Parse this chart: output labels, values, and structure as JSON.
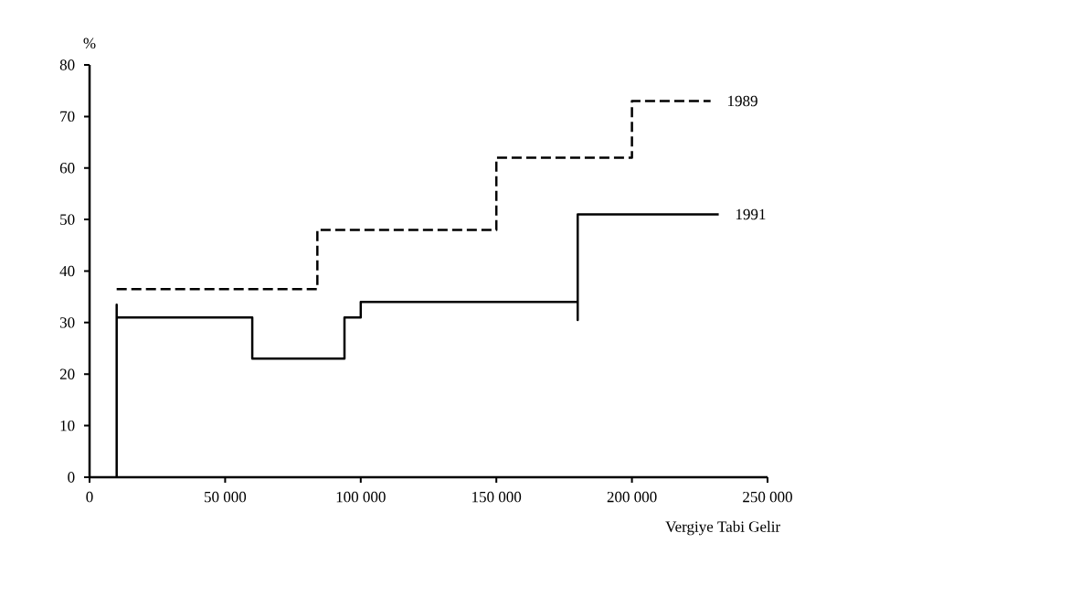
{
  "chart_data": {
    "type": "line",
    "xlabel": "Vergiye Tabi Gelir",
    "ylabel": "%",
    "xlim": [
      0,
      250000
    ],
    "ylim": [
      0,
      80
    ],
    "xticks": [
      0,
      {
        "value": 50000,
        "label": "50 000"
      },
      {
        "value": 100000,
        "label": "100 000"
      },
      {
        "value": 150000,
        "label": "150 000"
      },
      {
        "value": 200000,
        "label": "200 000"
      },
      {
        "value": 250000,
        "label": "250 000"
      }
    ],
    "yticks": [
      0,
      10,
      20,
      30,
      40,
      50,
      60,
      70,
      80
    ],
    "series": [
      {
        "name": "1989",
        "color": "#000000",
        "line_style": "dashed",
        "x": [
          10000,
          84000,
          84000,
          150000,
          150000,
          200000,
          200000,
          229000
        ],
        "values": [
          36.5,
          36.5,
          48,
          48,
          62,
          62,
          73,
          73
        ]
      },
      {
        "name": "1991",
        "color": "#000000",
        "line_style": "solid",
        "x": [
          10000,
          10000,
          10000,
          60000,
          60000,
          94000,
          94000,
          100000,
          100000,
          180000,
          180000,
          180000,
          232000
        ],
        "values": [
          0,
          33.5,
          31,
          31,
          23,
          23,
          31,
          31,
          34,
          34,
          30.5,
          51,
          51
        ]
      }
    ]
  }
}
